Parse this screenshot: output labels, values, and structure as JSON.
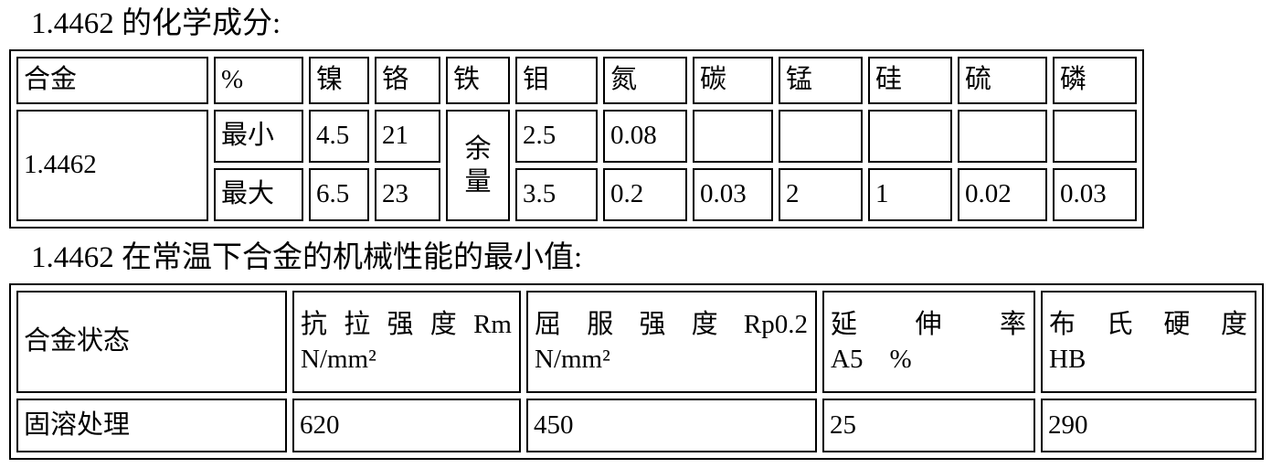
{
  "colors": {
    "background": "#ffffff",
    "text": "#000000",
    "border": "#000000"
  },
  "chem": {
    "title": "1.4462 的化学成分:",
    "headers": [
      "合金",
      "%",
      "镍",
      "铬",
      "铁",
      "钼",
      "氮",
      "碳",
      "锰",
      "硅",
      "硫",
      "磷"
    ],
    "alloy": "1.4462",
    "iron": "余\n量",
    "min": {
      "label": "最小",
      "ni": "4.5",
      "cr": "21",
      "mo": "2.5",
      "n": "0.08",
      "c": "",
      "mn": "",
      "si": "",
      "s": "",
      "p": ""
    },
    "max": {
      "label": "最大",
      "ni": "6.5",
      "cr": "23",
      "mo": "3.5",
      "n": "0.2",
      "c": "0.03",
      "mn": "2",
      "si": "1",
      "s": "0.02",
      "p": "0.03"
    }
  },
  "mech": {
    "title": "1.4462 在常温下合金的机械性能的最小值:",
    "headers": [
      {
        "line1": "合金状态"
      },
      {
        "line1": "抗 拉 强 度 Rm",
        "line2": "N/mm²"
      },
      {
        "line1": "屈 服 强 度 Rp0.2",
        "line2": "N/mm²"
      },
      {
        "line1": "延 伸 率",
        "line2": "A5　%"
      },
      {
        "line1": "布 氏 硬 度",
        "line2": "HB"
      }
    ],
    "row": {
      "state": "固溶处理",
      "rm": "620",
      "rp0_2": "450",
      "a5": "25",
      "hb": "290"
    }
  }
}
